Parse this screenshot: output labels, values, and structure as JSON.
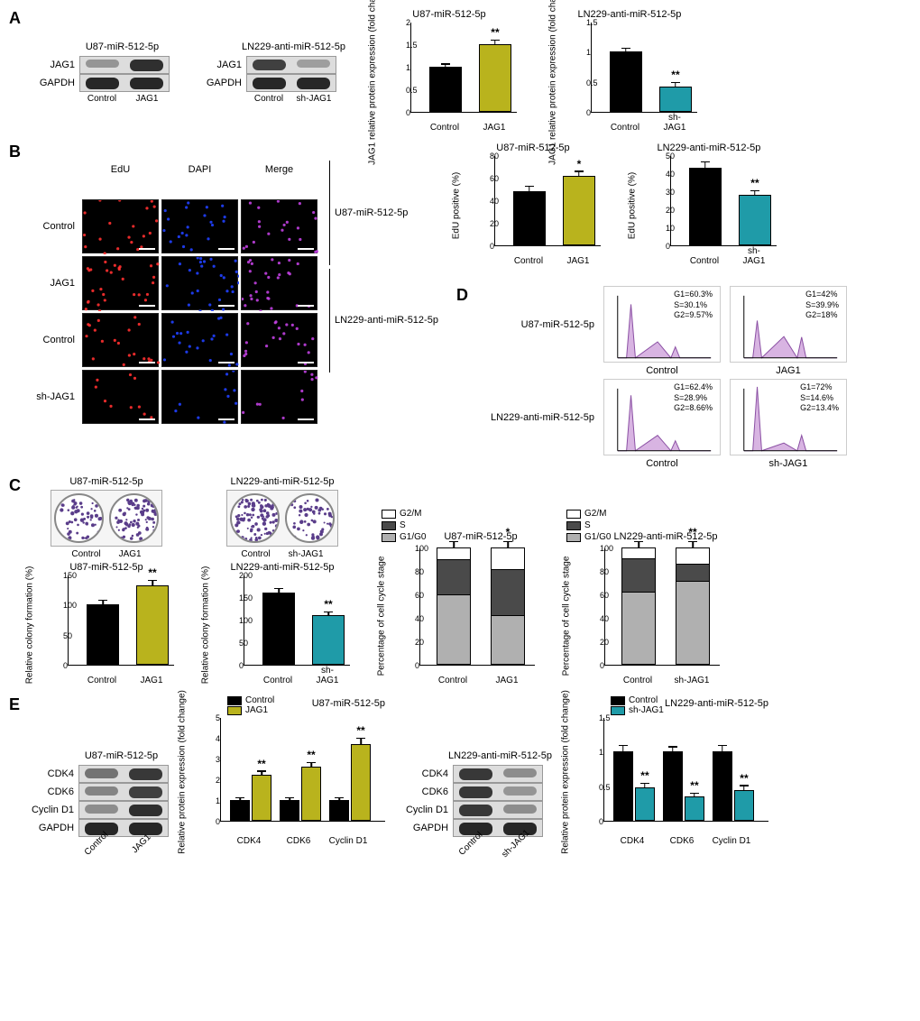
{
  "colors": {
    "control": "#000000",
    "jag1": "#b9b31d",
    "shjag1": "#1f9ba8",
    "g1": "#b0b0b0",
    "s": "#4a4a4a",
    "g2": "#ffffff",
    "band_dark": "#2a2a2a",
    "band_med": "#6a6a6a",
    "band_light": "#a0a0a0",
    "flow_fill": "#d8b4e2"
  },
  "A": {
    "blot1_title": "U87-miR-512-5p",
    "blot2_title": "LN229-anti-miR-512-5p",
    "rows": [
      "JAG1",
      "GAPDH"
    ],
    "cols1": [
      "Control",
      "JAG1"
    ],
    "cols2": [
      "Control",
      "sh-JAG1"
    ],
    "chart1": {
      "title": "U87-miR-512-5p",
      "ylabel": "JAG1 relative protein\nexpression (fold change)",
      "ymax": 2.0,
      "ystep": 0.5,
      "bars": [
        {
          "label": "Control",
          "value": 1.0,
          "err": 0.05,
          "color": "#000000"
        },
        {
          "label": "JAG1",
          "value": 1.5,
          "err": 0.08,
          "color": "#b9b31d",
          "sig": "**"
        }
      ]
    },
    "chart2": {
      "title": "LN229-anti-miR-512-5p",
      "ylabel": "JAG1 relative protein\nexpression (fold change)",
      "ymax": 1.5,
      "ystep": 0.5,
      "bars": [
        {
          "label": "Control",
          "value": 1.0,
          "err": 0.05,
          "color": "#000000"
        },
        {
          "label": "sh-JAG1",
          "value": 0.42,
          "err": 0.06,
          "color": "#1f9ba8",
          "sig": "**"
        }
      ]
    }
  },
  "B": {
    "cols": [
      "EdU",
      "DAPI",
      "Merge"
    ],
    "rows": [
      "Control",
      "JAG1",
      "Control",
      "sh-JAG1"
    ],
    "group1": "U87-miR-512-5p",
    "group2": "LN229-anti-miR-512-5p",
    "chart1": {
      "title": "U87-miR-512-5p",
      "ylabel": "EdU positive (%)",
      "ymax": 80,
      "ystep": 20,
      "bars": [
        {
          "label": "Control",
          "value": 48,
          "err": 4,
          "color": "#000000"
        },
        {
          "label": "JAG1",
          "value": 62,
          "err": 3,
          "color": "#b9b31d",
          "sig": "*"
        }
      ]
    },
    "chart2": {
      "title": "LN229-anti-miR-512-5p",
      "ylabel": "EdU positive (%)",
      "ymax": 50,
      "ystep": 10,
      "bars": [
        {
          "label": "Control",
          "value": 43,
          "err": 3,
          "color": "#000000"
        },
        {
          "label": "sh-JAG1",
          "value": 28,
          "err": 2,
          "color": "#1f9ba8",
          "sig": "**"
        }
      ]
    }
  },
  "C": {
    "title1": "U87-miR-512-5p",
    "title2": "LN229-anti-miR-512-5p",
    "cols1": [
      "Control",
      "JAG1"
    ],
    "cols2": [
      "Control",
      "sh-JAG1"
    ],
    "chart1": {
      "title": "U87-miR-512-5p",
      "ylabel": "Relative colony\nformation (%)",
      "ymax": 150,
      "ystep": 50,
      "bars": [
        {
          "label": "Control",
          "value": 100,
          "err": 6,
          "color": "#000000"
        },
        {
          "label": "JAG1",
          "value": 132,
          "err": 7,
          "color": "#b9b31d",
          "sig": "**"
        }
      ]
    },
    "chart2": {
      "title": "LN229-anti-miR-512-5p",
      "ylabel": "Relative colony\nformation (%)",
      "ymax": 200,
      "ystep": 50,
      "bars": [
        {
          "label": "Control",
          "value": 160,
          "err": 8,
          "color": "#000000"
        },
        {
          "label": "sh-JAG1",
          "value": 110,
          "err": 6,
          "color": "#1f9ba8",
          "sig": "**"
        }
      ]
    }
  },
  "D": {
    "row1_label": "U87-miR-512-5p",
    "row2_label": "LN229-anti-miR-512-5p",
    "hist_cols1": [
      "Control",
      "JAG1"
    ],
    "hist_cols2": [
      "Control",
      "sh-JAG1"
    ],
    "stats": [
      {
        "G1": "60.3%",
        "S": "30.1%",
        "G2": "9.57%"
      },
      {
        "G1": "42%",
        "S": "39.9%",
        "G2": "18%"
      },
      {
        "G1": "62.4%",
        "S": "28.9%",
        "G2": "8.66%"
      },
      {
        "G1": "72%",
        "S": "14.6%",
        "G2": "13.4%"
      }
    ],
    "legend": [
      "G2/M",
      "S",
      "G1/G0"
    ],
    "stack1": {
      "title": "U87-miR-512-5p",
      "ylabel": "Percentage of cell\ncycle stage",
      "ymax": 100,
      "ystep": 20,
      "sig": "*",
      "bars": [
        {
          "label": "Control",
          "G1": 60.3,
          "S": 30.1,
          "G2": 9.57
        },
        {
          "label": "JAG1",
          "G1": 42,
          "S": 39.9,
          "G2": 18
        }
      ]
    },
    "stack2": {
      "title": "LN229-anti-miR-512-5p",
      "ylabel": "Percentage of cell\ncycle stage",
      "ymax": 100,
      "ystep": 20,
      "sig": "**",
      "bars": [
        {
          "label": "Control",
          "G1": 62.4,
          "S": 28.9,
          "G2": 8.66
        },
        {
          "label": "sh-JAG1",
          "G1": 72,
          "S": 14.6,
          "G2": 13.4
        }
      ]
    }
  },
  "E": {
    "title1": "U87-miR-512-5p",
    "title2": "LN229-anti-miR-512-5p",
    "rows": [
      "CDK4",
      "CDK6",
      "Cyclin D1",
      "GAPDH"
    ],
    "cols1": [
      "Control",
      "JAG1"
    ],
    "cols2": [
      "Control",
      "sh-JAG1"
    ],
    "chart1": {
      "title": "U87-miR-512-5p",
      "ylabel": "Relative protein\nexpression (fold change)",
      "ymax": 5,
      "ystep": 1,
      "legend": [
        {
          "label": "Control",
          "color": "#000000"
        },
        {
          "label": "JAG1",
          "color": "#b9b31d"
        }
      ],
      "groups": [
        "CDK4",
        "CDK6",
        "Cyclin D1"
      ],
      "series": [
        {
          "color": "#000000",
          "values": [
            1.0,
            1.0,
            1.0
          ],
          "err": [
            0.08,
            0.08,
            0.08
          ]
        },
        {
          "color": "#b9b31d",
          "values": [
            2.2,
            2.6,
            3.7
          ],
          "err": [
            0.15,
            0.18,
            0.25
          ],
          "sig": [
            "**",
            "**",
            "**"
          ]
        }
      ]
    },
    "chart2": {
      "title": "LN229-anti-miR-512-5p",
      "ylabel": "Relative protein\nexpression (fold change)",
      "ymax": 1.5,
      "ystep": 0.5,
      "legend": [
        {
          "label": "Control",
          "color": "#000000"
        },
        {
          "label": "sh-JAG1",
          "color": "#1f9ba8"
        }
      ],
      "groups": [
        "CDK4",
        "CDK6",
        "Cyclin D1"
      ],
      "series": [
        {
          "color": "#000000",
          "values": [
            1.0,
            1.0,
            1.0
          ],
          "err": [
            0.08,
            0.06,
            0.08
          ]
        },
        {
          "color": "#1f9ba8",
          "values": [
            0.48,
            0.35,
            0.45
          ],
          "err": [
            0.05,
            0.04,
            0.05
          ],
          "sig": [
            "**",
            "**",
            "**"
          ]
        }
      ]
    }
  }
}
